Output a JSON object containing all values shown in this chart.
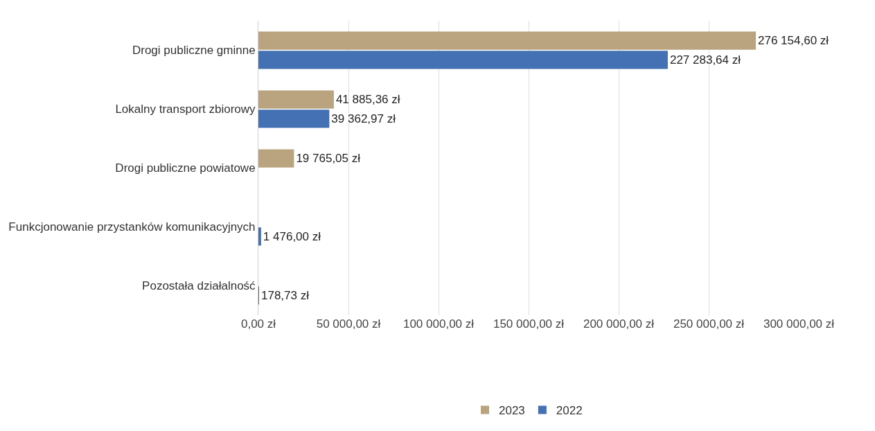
{
  "chart_data": {
    "type": "bar",
    "orientation": "horizontal",
    "categories": [
      "Drogi publiczne gminne",
      "Lokalny transport zbiorowy",
      "Drogi publiczne powiatowe",
      "Funkcjonowanie przystanków komunikacyjnych",
      "Pozostała działalność"
    ],
    "series": [
      {
        "name": "2023",
        "color": "#b9a47f",
        "values": [
          276154.6,
          41885.36,
          19765.05,
          null,
          null
        ],
        "value_labels": [
          "276 154,60 zł",
          "41 885,36 zł",
          "19 765,05 zł",
          null,
          null
        ]
      },
      {
        "name": "2022",
        "color": "#4470b4",
        "values": [
          227283.64,
          39362.97,
          null,
          1476.0,
          178.73
        ],
        "value_labels": [
          "227 283,64 zł",
          "39 362,97 zł",
          null,
          "1 476,00 zł",
          "178,73 zł"
        ]
      }
    ],
    "xlim": [
      0,
      300000
    ],
    "xticks": [
      {
        "value": 0,
        "label": "0,00 zł"
      },
      {
        "value": 50000,
        "label": "50 000,00 zł"
      },
      {
        "value": 100000,
        "label": "100 000,00 zł"
      },
      {
        "value": 150000,
        "label": "150 000,00 zł"
      },
      {
        "value": 200000,
        "label": "200 000,00 zł"
      },
      {
        "value": 250000,
        "label": "250 000,00 zł"
      },
      {
        "value": 300000,
        "label": "300 000,00 zł"
      }
    ],
    "grid": "x",
    "legend": "bottom"
  }
}
